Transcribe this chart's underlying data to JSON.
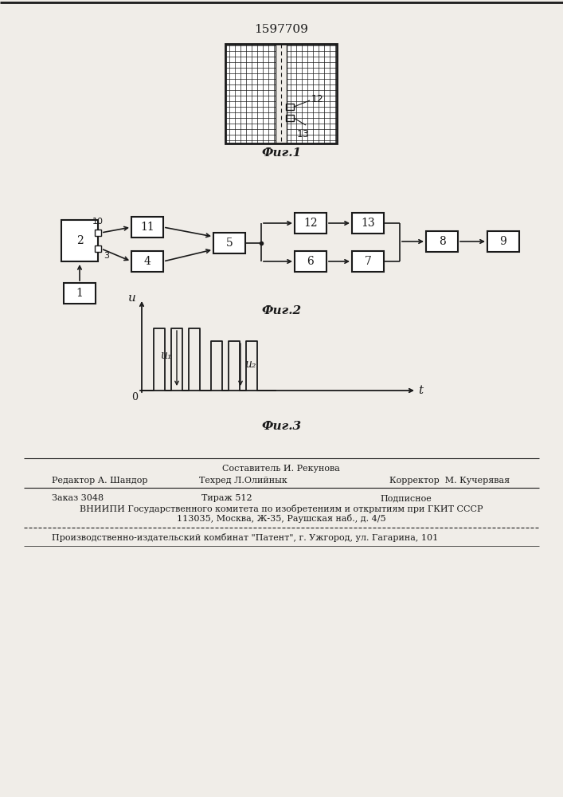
{
  "patent_number": "1597709",
  "fig1_caption": "Фиг.1",
  "fig2_caption": "Фиг.2",
  "fig3_caption": "Фиг.3",
  "bg_color": "#f0ede8",
  "line_color": "#1a1a1a",
  "footer_line1_left": "Редактор А. Шандор",
  "footer_line1_center": "Техред Л.Олийнык",
  "footer_line1_center_top": "Составитель И. Рекунова",
  "footer_line1_right": "Корректор  М. Кучерявая",
  "footer_line2_a": "Заказ 3048",
  "footer_line2_b": "Тираж 512",
  "footer_line2_c": "Подписное",
  "footer_line3": "ВНИИПИ Государственного комитета по изобретениям и открытиям при ГКИТ СССР",
  "footer_line4": "113035, Москва, Ж-35, Раушская наб., д. 4/5",
  "footer_line5": "Производственно-издательский комбинат \"Патент\", г. Ужгород, ул. Гагарина, 101"
}
